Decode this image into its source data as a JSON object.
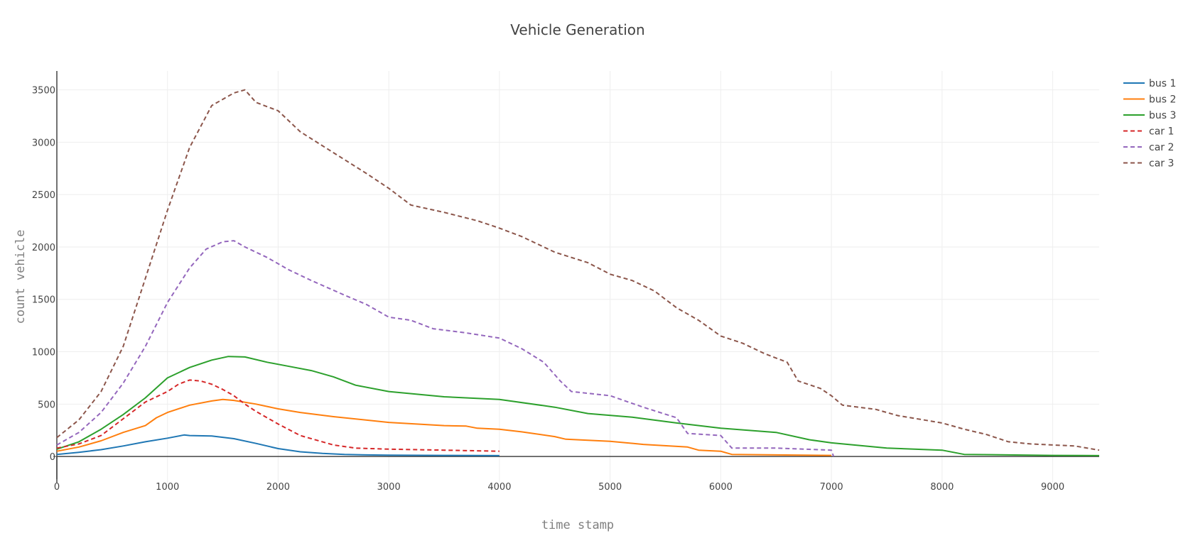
{
  "chart_data": {
    "type": "line",
    "title": "Vehicle Generation",
    "xlabel": "time stamp",
    "ylabel": "count vehicle",
    "xlim": [
      0,
      9420
    ],
    "ylim": [
      -250,
      3680
    ],
    "xticks": [
      0,
      1000,
      2000,
      3000,
      4000,
      5000,
      6000,
      7000,
      8000,
      9000
    ],
    "yticks": [
      0,
      500,
      1000,
      1500,
      2000,
      2500,
      3000,
      3500
    ],
    "grid": true,
    "legend_position": "top-right",
    "series": [
      {
        "name": "bus 1",
        "color": "#1f77b4",
        "dash": "solid",
        "x": [
          0,
          200,
          400,
          600,
          800,
          1000,
          1150,
          1200,
          1400,
          1600,
          1800,
          2000,
          2200,
          2400,
          2600,
          2800,
          3000,
          3500,
          4000
        ],
        "y": [
          20,
          40,
          65,
          100,
          140,
          175,
          205,
          200,
          195,
          170,
          125,
          75,
          45,
          30,
          20,
          15,
          13,
          10,
          8
        ]
      },
      {
        "name": "bus 2",
        "color": "#ff7f0e",
        "dash": "solid",
        "x": [
          0,
          200,
          400,
          600,
          800,
          900,
          1000,
          1200,
          1400,
          1500,
          1600,
          1800,
          2000,
          2200,
          2500,
          3000,
          3500,
          3700,
          3800,
          4000,
          4200,
          4500,
          4600,
          5000,
          5300,
          5700,
          5800,
          6000,
          6100,
          6500,
          7000
        ],
        "y": [
          50,
          90,
          150,
          230,
          295,
          370,
          420,
          490,
          530,
          545,
          535,
          500,
          455,
          420,
          380,
          325,
          295,
          290,
          270,
          260,
          235,
          190,
          165,
          145,
          115,
          90,
          60,
          50,
          20,
          15,
          10
        ]
      },
      {
        "name": "bus 3",
        "color": "#2ca02c",
        "dash": "solid",
        "x": [
          0,
          200,
          400,
          600,
          800,
          1000,
          1200,
          1400,
          1550,
          1700,
          1900,
          2100,
          2300,
          2500,
          2700,
          3000,
          3500,
          4000,
          4500,
          4800,
          5200,
          5600,
          6000,
          6500,
          6800,
          7000,
          7500,
          8000,
          8200,
          9000,
          9420
        ],
        "y": [
          70,
          140,
          260,
          400,
          560,
          750,
          850,
          920,
          955,
          950,
          900,
          860,
          820,
          760,
          680,
          620,
          570,
          545,
          470,
          410,
          375,
          320,
          270,
          230,
          160,
          130,
          80,
          60,
          20,
          10,
          8
        ]
      },
      {
        "name": "car 1",
        "color": "#d62728",
        "dash": "dashed",
        "x": [
          0,
          200,
          400,
          600,
          800,
          1000,
          1100,
          1200,
          1300,
          1400,
          1500,
          1600,
          1700,
          1800,
          2000,
          2200,
          2500,
          2700,
          3000,
          3500,
          4000
        ],
        "y": [
          80,
          120,
          200,
          360,
          520,
          620,
          690,
          730,
          720,
          690,
          640,
          580,
          500,
          430,
          310,
          200,
          110,
          80,
          70,
          60,
          50
        ]
      },
      {
        "name": "car 2",
        "color": "#9467bd",
        "dash": "dashed",
        "x": [
          0,
          200,
          400,
          600,
          800,
          1000,
          1200,
          1350,
          1500,
          1600,
          1700,
          1900,
          2100,
          2300,
          2600,
          2800,
          3000,
          3200,
          3400,
          3700,
          4000,
          4200,
          4400,
          4550,
          4650,
          5000,
          5300,
          5600,
          5700,
          6000,
          6100,
          6500,
          7000,
          7020
        ],
        "y": [
          110,
          230,
          420,
          700,
          1050,
          1470,
          1800,
          1980,
          2050,
          2060,
          2000,
          1900,
          1780,
          1680,
          1540,
          1450,
          1330,
          1300,
          1220,
          1180,
          1130,
          1030,
          900,
          720,
          620,
          580,
          470,
          370,
          220,
          200,
          80,
          80,
          60,
          0
        ]
      },
      {
        "name": "car 3",
        "color": "#8c564b",
        "dash": "dashed",
        "x": [
          0,
          200,
          400,
          600,
          800,
          1000,
          1200,
          1400,
          1600,
          1700,
          1800,
          2000,
          2200,
          2500,
          2800,
          3000,
          3200,
          3500,
          3800,
          4000,
          4200,
          4500,
          4800,
          5000,
          5200,
          5400,
          5600,
          5800,
          6000,
          6200,
          6400,
          6600,
          6700,
          6900,
          7000,
          7100,
          7400,
          7600,
          8000,
          8200,
          8400,
          8600,
          8800,
          9000,
          9200,
          9420
        ],
        "y": [
          180,
          350,
          620,
          1050,
          1700,
          2350,
          2950,
          3350,
          3470,
          3500,
          3380,
          3300,
          3100,
          2900,
          2700,
          2560,
          2400,
          2330,
          2250,
          2180,
          2100,
          1950,
          1850,
          1740,
          1680,
          1580,
          1420,
          1300,
          1150,
          1080,
          980,
          900,
          720,
          650,
          580,
          490,
          450,
          390,
          320,
          260,
          210,
          140,
          120,
          110,
          100,
          60
        ]
      }
    ]
  }
}
